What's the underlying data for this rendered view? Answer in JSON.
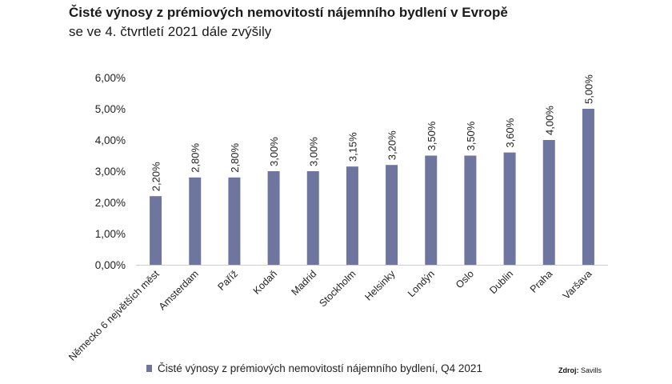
{
  "title": "Čisté výnosy z prémiových nemovitostí nájemního bydlení v Evropě",
  "subtitle": "se ve 4. čtvrtletí 2021 dále zvýšily",
  "source": {
    "label": "Zdroj:",
    "value": "Savills"
  },
  "colors": {
    "bar": "#6e769f",
    "axis": "#cfcfcf",
    "text": "#222222"
  },
  "chart_data": {
    "type": "bar",
    "title": "Čisté výnosy z prémiových nemovitostí nájemního bydlení v Evropě",
    "subtitle": "se ve 4. čtvrtletí 2021 dále zvýšily",
    "xlabel": "",
    "ylabel": "",
    "categories": [
      "Německo 6 největších měst",
      "Amsterdam",
      "Paříž",
      "Kodaň",
      "Madrid",
      "Stockholm",
      "Helsinky",
      "Londýn",
      "Oslo",
      "Dublin",
      "Praha",
      "Varšava"
    ],
    "series": [
      {
        "name": "Čisté výnosy z prémiových nemovitostí nájemního bydlení, Q4 2021",
        "values": [
          2.2,
          2.8,
          2.8,
          3.0,
          3.0,
          3.15,
          3.2,
          3.5,
          3.5,
          3.6,
          4.0,
          5.0
        ]
      }
    ],
    "data_labels": [
      "2,20%",
      "2,80%",
      "2,80%",
      "3,00%",
      "3,00%",
      "3,15%",
      "3,20%",
      "3,50%",
      "3,50%",
      "3,60%",
      "4,00%",
      "5,00%"
    ],
    "ylim": [
      0,
      6
    ],
    "yticks": [
      0,
      1,
      2,
      3,
      4,
      5,
      6
    ],
    "ytick_labels": [
      "0,00%",
      "1,00%",
      "2,00%",
      "3,00%",
      "4,00%",
      "5,00%",
      "6,00%"
    ],
    "grid": false,
    "legend_position": "bottom"
  }
}
